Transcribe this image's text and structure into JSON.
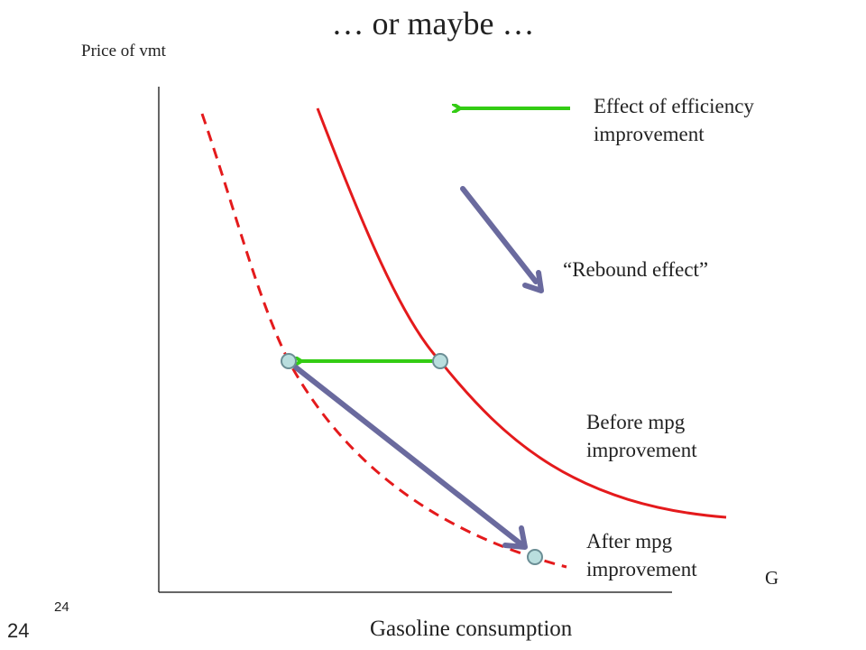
{
  "title": "… or maybe …",
  "y_axis_label": "Price of vmt",
  "x_axis_label": "Gasoline consumption",
  "x_axis_symbol": "G",
  "labels": {
    "efficiency_effect": "Effect of efficiency improvement",
    "rebound_effect": "“Rebound effect”",
    "before": "Before mpg improvement",
    "after": "After mpg improvement"
  },
  "slide_number": "24",
  "slide_number_small": "24",
  "colors": {
    "curve": "#e41a1c",
    "efficiency_arrow": "#33cc14",
    "rebound_arrow": "#6a6a9e",
    "point_fill": "#b9dede",
    "point_stroke": "#6b8e95",
    "axis": "#333333"
  }
}
